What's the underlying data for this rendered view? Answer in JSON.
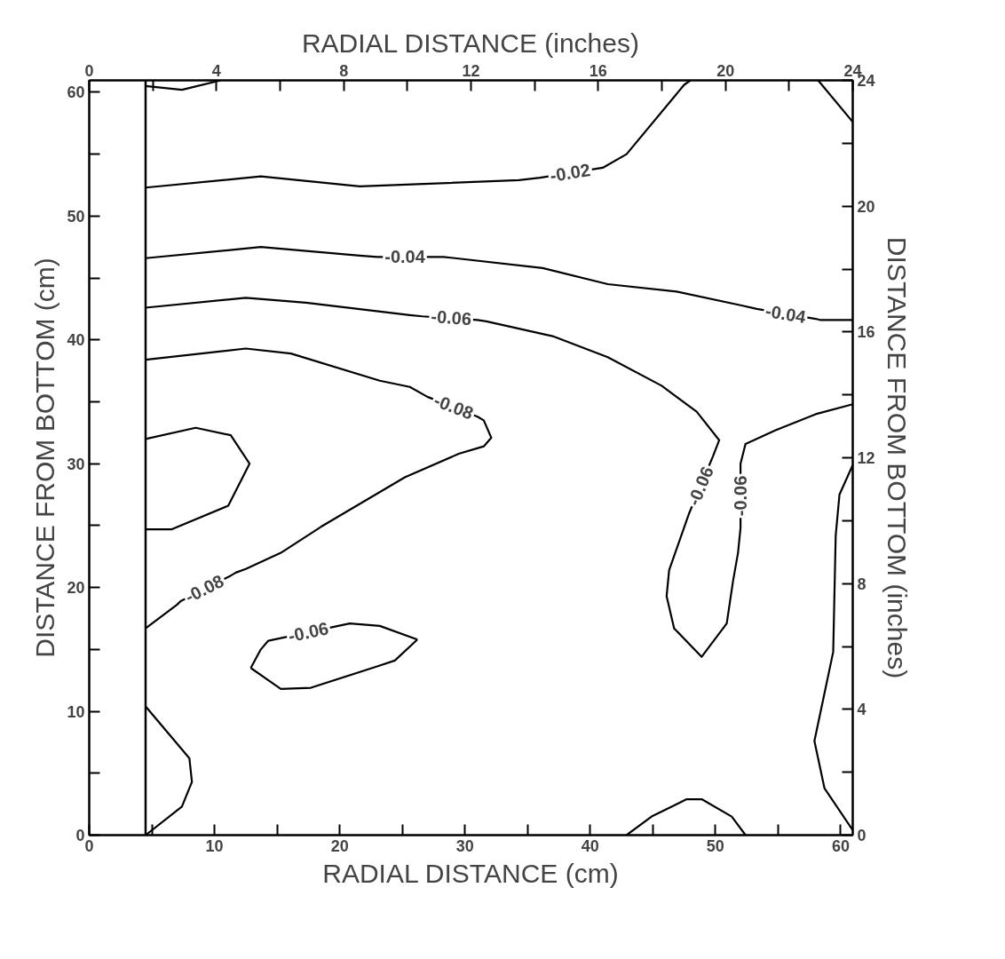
{
  "chart_data": {
    "type": "line",
    "xlabel": "RADIAL DISTANCE (cm)",
    "x2label": "RADIAL DISTANCE (inches)",
    "ylabel": "DISTANCE FROM BOTTOM (cm)",
    "y2label": "DISTANCE FROM BOTTOM (inches)",
    "xlim": [
      0,
      60.96
    ],
    "ylim": [
      0,
      60.96
    ],
    "x2lim": [
      0,
      24
    ],
    "y2lim": [
      0,
      24
    ],
    "xticks": [
      0,
      {
        "value": 5,
        "label": null
      },
      10,
      {
        "value": 15,
        "label": null
      },
      20,
      {
        "value": 25,
        "label": null
      },
      30,
      {
        "value": 35,
        "label": null
      },
      40,
      {
        "value": 45,
        "label": null
      },
      50,
      {
        "value": 55,
        "label": null
      },
      60
    ],
    "yticks": [
      0,
      {
        "value": 5,
        "label": null
      },
      10,
      {
        "value": 15,
        "label": null
      },
      20,
      {
        "value": 25,
        "label": null
      },
      30,
      {
        "value": 35,
        "label": null
      },
      40,
      {
        "value": 45,
        "label": null
      },
      50,
      {
        "value": 55,
        "label": null
      },
      60
    ],
    "x2ticks": [
      0,
      {
        "value": 2,
        "label": null
      },
      4,
      {
        "value": 6,
        "label": null
      },
      8,
      {
        "value": 10,
        "label": null
      },
      12,
      {
        "value": 14,
        "label": null
      },
      16,
      {
        "value": 18,
        "label": null
      },
      20,
      {
        "value": 22,
        "label": null
      },
      24
    ],
    "y2ticks": [
      0,
      {
        "value": 2,
        "label": null
      },
      4,
      {
        "value": 6,
        "label": null
      },
      8,
      {
        "value": 10,
        "label": null
      },
      12,
      {
        "value": 14,
        "label": null
      },
      16,
      {
        "value": 18,
        "label": null
      },
      20,
      {
        "value": 22,
        "label": null
      },
      24
    ],
    "ref_lines": [
      {
        "axis": "x",
        "value": 4.5,
        "color": "#000000"
      }
    ],
    "series": [
      {
        "color": "#000000",
        "x": [
          4.5,
          7.4,
          10.5
        ],
        "values": [
          60.5,
          60.2,
          60.96
        ]
      },
      {
        "color": "#000000",
        "x": [
          4.5,
          13.7,
          21.6,
          34.3,
          36.0,
          41.0,
          42.9,
          47.5,
          48.0
        ],
        "values": [
          52.3,
          53.2,
          52.4,
          52.9,
          53.1,
          53.9,
          55.0,
          60.6,
          60.96
        ]
      },
      {
        "color": "#000000",
        "x": [
          58.2,
          60.96
        ],
        "values": [
          60.96,
          57.6
        ]
      },
      {
        "color": "#000000",
        "x": [
          4.5,
          13.7,
          21.6,
          23.0,
          27.4,
          28.3,
          36.2,
          41.4,
          46.9,
          52.0,
          53.3,
          58.0,
          58.4,
          60.96
        ],
        "values": [
          46.6,
          47.5,
          46.8,
          46.7,
          46.7,
          46.7,
          45.8,
          44.5,
          43.9,
          42.8,
          42.5,
          41.7,
          41.6,
          41.6
        ]
      },
      {
        "color": "#000000",
        "x": [
          4.5,
          12.5,
          17.3,
          25.6,
          26.6,
          31.0,
          31.7,
          37.0,
          41.4,
          45.7,
          48.5,
          50.3,
          49.8,
          47.9,
          46.3,
          46.1,
          46.7,
          48.9,
          50.9,
          51.4,
          51.8,
          52.0,
          52.0,
          52.4,
          54.8,
          58.0,
          60.96
        ],
        "values": [
          42.6,
          43.4,
          43.0,
          42.0,
          41.9,
          41.6,
          41.5,
          40.3,
          38.6,
          36.3,
          34.2,
          31.9,
          30.6,
          26.0,
          21.4,
          19.3,
          16.7,
          14.4,
          17.1,
          20.5,
          22.8,
          24.8,
          30.0,
          31.6,
          32.7,
          34.0,
          34.8
        ]
      },
      {
        "color": "#000000",
        "x": [
          4.5,
          12.5,
          16.1,
          23.2,
          25.6,
          27.0,
          31.0,
          31.5,
          32.1,
          31.5,
          29.5,
          25.2,
          18.5,
          15.3,
          12.5,
          11.7,
          11.2,
          7.3,
          7.0,
          4.5
        ],
        "values": [
          38.4,
          39.3,
          38.9,
          36.7,
          36.2,
          35.4,
          33.8,
          33.5,
          32.1,
          31.4,
          30.8,
          28.9,
          24.9,
          22.8,
          21.5,
          21.2,
          20.9,
          18.9,
          18.6,
          16.7
        ]
      },
      {
        "color": "#000000",
        "x": [
          4.5,
          8.5,
          11.3,
          12.8,
          11.1,
          6.6,
          4.5
        ],
        "values": [
          32.0,
          32.9,
          32.3,
          30.0,
          26.6,
          24.7,
          24.7
        ]
      },
      {
        "color": "#000000",
        "x": [
          12.9,
          13.7,
          14.3,
          20.8,
          23.2,
          26.2
        ],
        "values": [
          13.5,
          15.0,
          15.7,
          17.1,
          16.9,
          15.8
        ]
      },
      {
        "color": "#000000",
        "x": [
          12.9,
          15.3,
          17.7,
          23.2,
          24.4,
          26.2
        ],
        "values": [
          13.5,
          11.8,
          11.9,
          13.7,
          14.1,
          15.8
        ]
      },
      {
        "color": "#000000",
        "x": [
          4.5,
          8.0,
          8.2,
          7.4,
          4.5
        ],
        "values": [
          10.4,
          6.2,
          4.3,
          2.3,
          0
        ]
      },
      {
        "color": "#000000",
        "x": [
          42.9,
          44.9,
          47.7,
          48.9,
          51.3,
          52.4
        ],
        "values": [
          0,
          1.5,
          2.9,
          2.9,
          1.5,
          0
        ]
      },
      {
        "color": "#000000",
        "x": [
          60.96,
          59.9,
          59.6,
          59.4,
          57.9,
          58.7,
          60.96
        ],
        "values": [
          29.9,
          27.5,
          24.2,
          14.8,
          7.6,
          3.8,
          0.4
        ]
      }
    ],
    "annotations": [
      {
        "text": "-0.02",
        "x": 38.4,
        "y": 53.5
      },
      {
        "text": "-0.04",
        "x": 25.2,
        "y": 46.7
      },
      {
        "text": "-0.04",
        "x": 55.6,
        "y": 42.1
      },
      {
        "text": "-0.06",
        "x": 28.9,
        "y": 41.8
      },
      {
        "text": "-0.08",
        "x": 29.1,
        "y": 34.6
      },
      {
        "text": "-0.06",
        "x": 48.8,
        "y": 28.2
      },
      {
        "text": "-0.06",
        "x": 52.0,
        "y": 27.4
      },
      {
        "text": "-0.08",
        "x": 9.2,
        "y": 19.9
      },
      {
        "text": "-0.06",
        "x": 17.5,
        "y": 16.4
      }
    ]
  }
}
